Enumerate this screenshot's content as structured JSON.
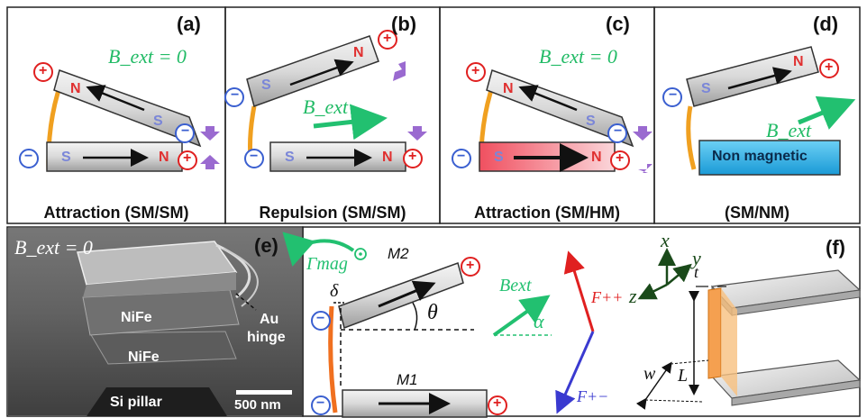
{
  "panels": {
    "a": {
      "letter": "(a)",
      "caption": "Attraction (SM/SM)",
      "field": "B_ext = 0"
    },
    "b": {
      "letter": "(b)",
      "caption": "Repulsion (SM/SM)",
      "field": "B_ext"
    },
    "c": {
      "letter": "(c)",
      "caption": "Attraction (SM/HM)",
      "field": "B_ext = 0"
    },
    "d": {
      "letter": "(d)",
      "caption": "(SM/NM)",
      "field": "B_ext",
      "nonmag_label": "Non magnetic"
    },
    "e": {
      "letter": "(e)",
      "field": "B_ext = 0",
      "labels": {
        "top_layer": "NiFe",
        "bottom_layer": "NiFe",
        "pillar": "Si pillar",
        "hinge_line1": "Au",
        "hinge_line2": "hinge",
        "scale": "500 nm"
      }
    },
    "f": {
      "letter": "(f)",
      "gamma": "Γmag",
      "m2": "M2",
      "m1": "M1",
      "delta": "δ",
      "theta": "θ",
      "bext": "Bext",
      "alpha": "α",
      "fpp": "F++",
      "fpm": "F+−",
      "axis_x": "x",
      "axis_y": "y",
      "axis_z": "z",
      "t": "t",
      "w": "w",
      "L": "L"
    }
  },
  "poles": {
    "north": "N",
    "south": "S",
    "plus": "+",
    "minus": "−"
  },
  "colors": {
    "positive": "#e02020",
    "negative": "#3a5fd0",
    "field_arrow": "#22c070",
    "hinge": "#f0a020",
    "torque_arrow": "#9a6ad0",
    "hard_magnet": "#f7a0a8",
    "nonmagnetic": "#39b3e8"
  }
}
